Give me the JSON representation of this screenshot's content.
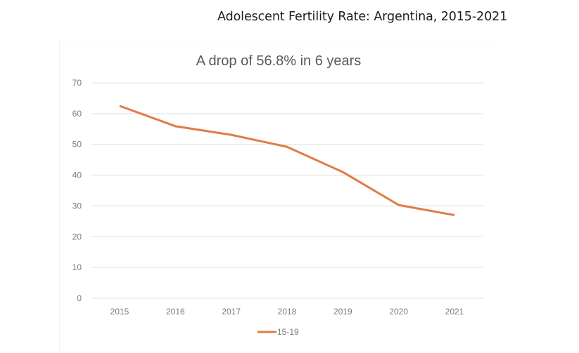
{
  "page": {
    "title": "Adolescent Fertility Rate: Argentina, 2015-2021"
  },
  "chart_data": {
    "type": "line",
    "title": "A drop of 56.8% in 6 years",
    "xlabel": "",
    "ylabel": "",
    "categories": [
      "2015",
      "2016",
      "2017",
      "2018",
      "2019",
      "2020",
      "2021"
    ],
    "series": [
      {
        "name": "15-19",
        "color": "#e07b45",
        "values": [
          62.5,
          55.9,
          53.1,
          49.2,
          41.0,
          30.3,
          27.0
        ]
      }
    ],
    "ylim": [
      0,
      70
    ],
    "yticks": [
      0,
      10,
      20,
      30,
      40,
      50,
      60,
      70
    ],
    "grid": true,
    "legend": "bottom-center"
  }
}
